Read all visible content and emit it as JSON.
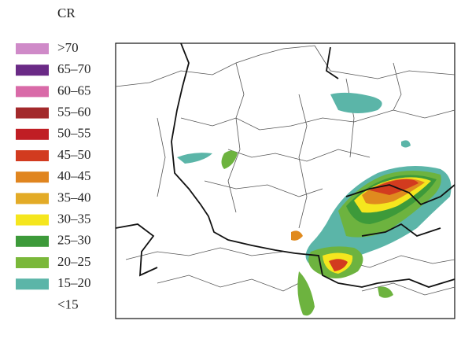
{
  "legend": {
    "title": "CR",
    "items": [
      {
        "label": ">70",
        "color": "#cf8ac8"
      },
      {
        "label": "65–70",
        "color": "#6a2a86"
      },
      {
        "label": "60–65",
        "color": "#d96aa8"
      },
      {
        "label": "55–60",
        "color": "#a3292b"
      },
      {
        "label": "50–55",
        "color": "#c01e24"
      },
      {
        "label": "45–50",
        "color": "#d23b1f"
      },
      {
        "label": "40–45",
        "color": "#e0851f"
      },
      {
        "label": "35–40",
        "color": "#e3ab27"
      },
      {
        "label": "30–35",
        "color": "#f5e61e"
      },
      {
        "label": "25–30",
        "color": "#3d9a3a"
      },
      {
        "label": "20–25",
        "color": "#7ab83a"
      },
      {
        "label": "15–20",
        "color": "#5bb5a8"
      },
      {
        "label": "<15"
      }
    ]
  }
}
